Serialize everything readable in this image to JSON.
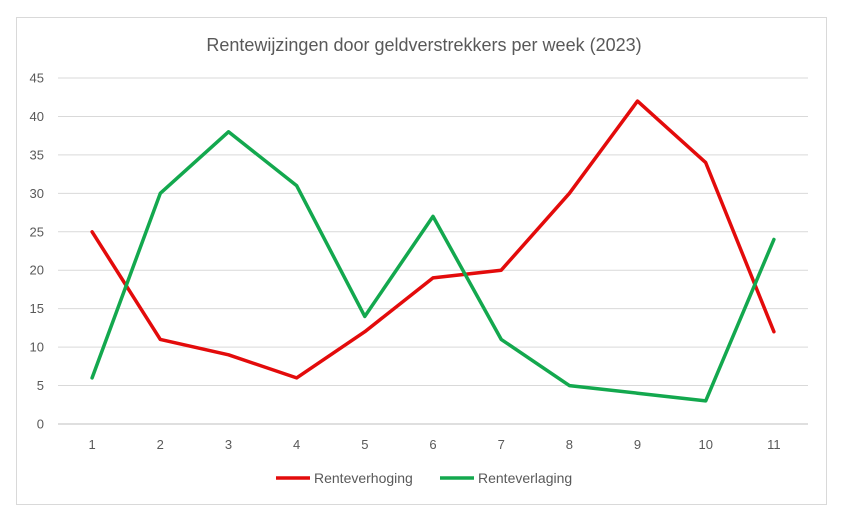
{
  "chart_data": {
    "type": "line",
    "title": "Rentewijzingen door geldverstrekkers per week (2023)",
    "xlabel": "",
    "ylabel": "",
    "categories": [
      "1",
      "2",
      "3",
      "4",
      "5",
      "6",
      "7",
      "8",
      "9",
      "10",
      "11"
    ],
    "ylim": [
      0,
      45
    ],
    "yticks": [
      "0",
      "5",
      "10",
      "15",
      "20",
      "25",
      "30",
      "35",
      "40",
      "45"
    ],
    "grid": true,
    "legend_position": "bottom",
    "series": [
      {
        "name": "Renteverhoging",
        "color": "#e30b0b",
        "values": [
          25,
          11,
          9,
          6,
          12,
          19,
          20,
          30,
          42,
          34,
          12
        ]
      },
      {
        "name": "Renteverlaging",
        "color": "#13a84e",
        "values": [
          6,
          30,
          38,
          31,
          14,
          27,
          11,
          5,
          4,
          3,
          24
        ]
      }
    ]
  }
}
